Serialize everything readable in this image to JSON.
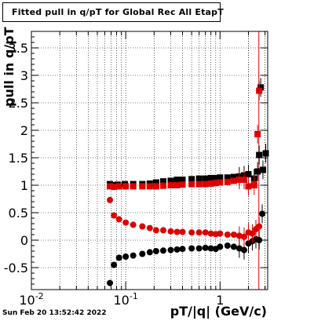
{
  "header": {
    "title": "Fitted pull in q/pT for Global Rec All EtapT"
  },
  "footer": {
    "timestamp": "Sun Feb 20 13:52:42 2022"
  },
  "chart_data": {
    "type": "scatter",
    "title": "Fitted pull in q/pT for Global Rec All EtapT",
    "xlabel": "pT/|q| (GeV/c)",
    "ylabel": "pull in q/pT",
    "xscale": "log",
    "xlim": [
      0.01,
      3.2
    ],
    "ylim": [
      -0.9,
      3.8
    ],
    "grid": true,
    "x_ticks": [
      {
        "value": 0.01,
        "label": "10",
        "exp": "-2"
      },
      {
        "value": 0.1,
        "label": "10",
        "exp": "-1"
      },
      {
        "value": 1,
        "label": "1",
        "exp": ""
      }
    ],
    "y_ticks": [
      -0.5,
      0,
      0.5,
      1,
      1.5,
      2,
      2.5,
      3,
      3.5
    ],
    "series": [
      {
        "color": "#000000",
        "x": [
          0.068,
          0.072,
          0.082,
          0.098,
          0.12,
          0.15,
          0.18,
          0.21,
          0.25,
          0.3,
          0.35,
          0.4,
          0.5,
          0.6,
          0.7,
          0.8,
          0.9,
          1.0,
          1.2,
          1.4,
          1.6,
          1.8,
          2.0,
          2.3,
          2.5,
          2.6,
          2.7,
          2.85,
          3.05
        ],
        "y": [
          1.02,
          1.0,
          1.01,
          1.02,
          1.02,
          1.02,
          1.03,
          1.05,
          1.07,
          1.08,
          1.1,
          1.1,
          1.11,
          1.12,
          1.12,
          1.13,
          1.13,
          1.14,
          1.14,
          1.15,
          1.16,
          1.18,
          1.2,
          1.12,
          1.25,
          1.55,
          2.78,
          1.28,
          1.58
        ]
      },
      {
        "color": "#000000",
        "x": [
          0.068,
          0.075,
          0.085,
          0.1,
          0.12,
          0.15,
          0.18,
          0.21,
          0.25,
          0.3,
          0.35,
          0.4,
          0.5,
          0.6,
          0.7,
          0.8,
          0.9,
          1.0,
          1.2,
          1.4,
          1.6,
          1.8,
          2.0,
          2.2,
          2.4,
          2.6,
          2.8
        ],
        "y": [
          -0.78,
          -0.45,
          -0.32,
          -0.3,
          -0.28,
          -0.25,
          -0.22,
          -0.2,
          -0.19,
          -0.18,
          -0.17,
          -0.16,
          -0.15,
          -0.15,
          -0.14,
          -0.15,
          -0.16,
          -0.12,
          -0.1,
          -0.12,
          -0.15,
          -0.18,
          -0.06,
          -0.02,
          0.02,
          0.0,
          0.48
        ]
      },
      {
        "color": "#dd0000",
        "x": [
          0.068,
          0.075,
          0.085,
          0.1,
          0.12,
          0.15,
          0.18,
          0.21,
          0.25,
          0.3,
          0.35,
          0.4,
          0.5,
          0.6,
          0.7,
          0.8,
          0.9,
          1.0,
          1.2,
          1.4,
          1.6,
          1.8,
          2.0,
          2.3,
          2.5,
          2.6
        ],
        "y": [
          0.98,
          0.97,
          0.98,
          0.98,
          0.98,
          0.98,
          0.98,
          0.98,
          0.99,
          1.0,
          1.0,
          1.01,
          1.02,
          1.02,
          1.02,
          1.03,
          1.04,
          1.05,
          1.06,
          1.08,
          1.1,
          1.1,
          0.98,
          1.0,
          1.93,
          2.72
        ]
      },
      {
        "color": "#dd0000",
        "x": [
          0.068,
          0.075,
          0.085,
          0.1,
          0.12,
          0.15,
          0.18,
          0.21,
          0.25,
          0.3,
          0.35,
          0.4,
          0.5,
          0.6,
          0.7,
          0.8,
          0.9,
          1.0,
          1.2,
          1.4,
          1.6,
          1.8,
          2.0,
          2.2,
          2.4,
          2.6
        ],
        "y": [
          0.73,
          0.45,
          0.38,
          0.32,
          0.28,
          0.25,
          0.22,
          0.18,
          0.18,
          0.16,
          0.15,
          0.15,
          0.14,
          0.14,
          0.14,
          0.12,
          0.11,
          0.12,
          0.1,
          0.1,
          0.08,
          0.06,
          0.14,
          0.12,
          0.2,
          0.25
        ]
      }
    ]
  }
}
